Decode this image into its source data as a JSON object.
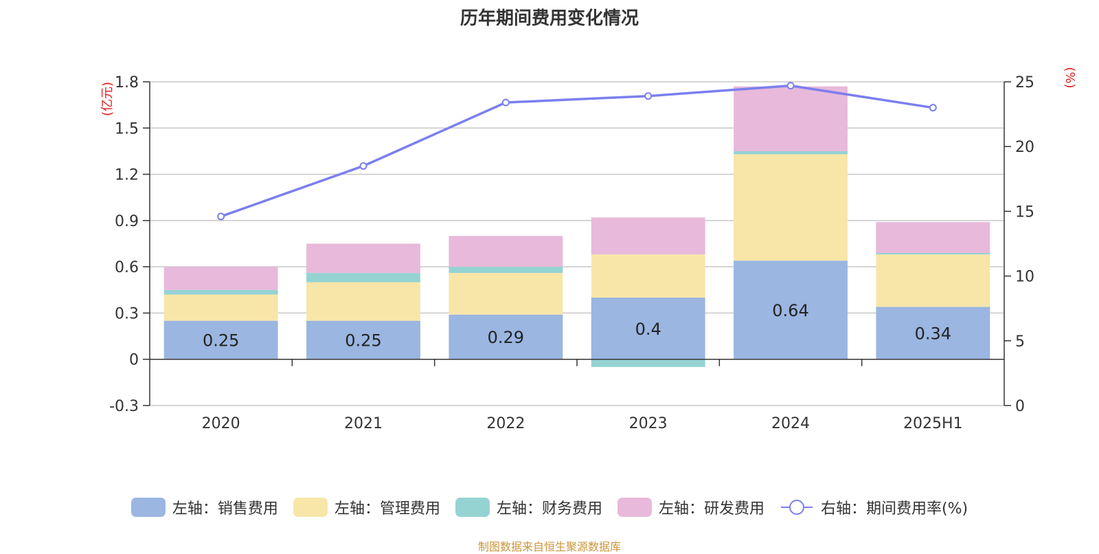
{
  "chart_data": {
    "type": "bar",
    "title": "历年期间费用变化情况",
    "categories": [
      "2020",
      "2021",
      "2022",
      "2023",
      "2024",
      "2025H1"
    ],
    "left_axis": {
      "unit_label": "(亿元)",
      "ylim": [
        -0.3,
        1.8
      ],
      "ticks": [
        -0.3,
        0,
        0.3,
        0.6,
        0.9,
        1.2,
        1.5,
        1.8
      ],
      "tick_labels": [
        "-0.3",
        "0",
        "0.3",
        "0.6",
        "0.9",
        "1.2",
        "1.5",
        "1.8"
      ]
    },
    "right_axis": {
      "unit_label": "(%)",
      "ylim": [
        0,
        25
      ],
      "ticks": [
        0,
        5,
        10,
        15,
        20,
        25
      ],
      "tick_labels": [
        "0",
        "5",
        "10",
        "15",
        "20",
        "25"
      ]
    },
    "stacked": true,
    "series": [
      {
        "name": "左轴：销售费用",
        "axis": "left",
        "color": "#9ab6e1",
        "values": [
          0.25,
          0.25,
          0.29,
          0.4,
          0.64,
          0.34
        ],
        "data_labels": [
          "0.25",
          "0.25",
          "0.29",
          "0.4",
          "0.64",
          "0.34"
        ]
      },
      {
        "name": "左轴：管理费用",
        "axis": "left",
        "color": "#f8e6a8",
        "values": [
          0.17,
          0.25,
          0.27,
          0.28,
          0.69,
          0.34
        ]
      },
      {
        "name": "左轴：财务费用",
        "axis": "left",
        "color": "#95d3d3",
        "values": [
          0.03,
          0.06,
          0.04,
          -0.05,
          0.02,
          0.01
        ]
      },
      {
        "name": "左轴：研发费用",
        "axis": "left",
        "color": "#e8b9da",
        "values": [
          0.15,
          0.19,
          0.2,
          0.24,
          0.42,
          0.2
        ]
      },
      {
        "name": "右轴：期间费用率(%)",
        "axis": "right",
        "type": "line",
        "color": "#7b7fee",
        "values": [
          14.6,
          18.5,
          23.4,
          23.9,
          24.7,
          23.0
        ]
      }
    ],
    "grid": true,
    "legend_position": "bottom",
    "source": "制图数据来自恒生聚源数据库"
  }
}
